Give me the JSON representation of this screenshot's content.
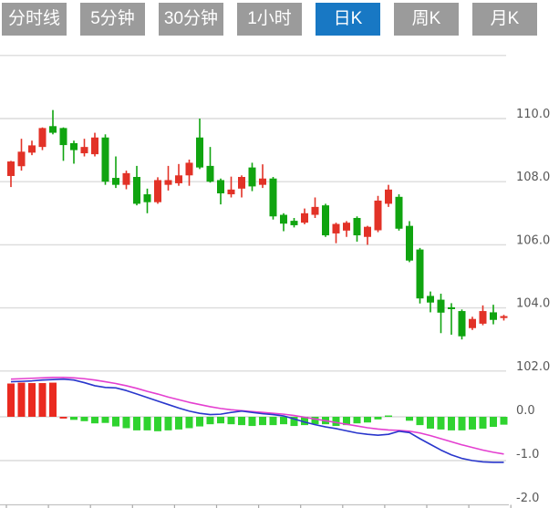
{
  "tabs": [
    {
      "label": "分时线",
      "active": false
    },
    {
      "label": "5分钟",
      "active": false
    },
    {
      "label": "30分钟",
      "active": false
    },
    {
      "label": "1小时",
      "active": false
    },
    {
      "label": "日K",
      "active": true
    },
    {
      "label": "周K",
      "active": false
    },
    {
      "label": "月K",
      "active": false
    }
  ],
  "colors": {
    "tab_inactive": "#9b9b9b",
    "tab_active": "#1878c4",
    "up_red": "#e23227",
    "down_green": "#10a410",
    "hist_red": "#ea2a20",
    "hist_green": "#2fd32f",
    "dif_blue": "#2936cc",
    "dea_pink": "#e43fd0",
    "grid": "#dcdcdc",
    "axis_line": "#c4c4c4",
    "label": "#585858"
  },
  "chart_data": {
    "type": "candlestick",
    "title": "",
    "panels": [
      "price",
      "macd"
    ],
    "legend_position": "none",
    "grid": true,
    "price_axis": {
      "tick_labels": [
        "110.0",
        "108.0",
        "106.0",
        "104.0",
        "102.0"
      ],
      "tick_values": [
        110.0,
        108.0,
        106.0,
        104.0,
        102.0
      ],
      "top_unlabeled_value": 112.0
    },
    "macd_axis": {
      "tick_labels": [
        "0.0",
        "-1.0",
        "-2.0"
      ],
      "tick_values": [
        0.0,
        -1.0,
        -2.0
      ]
    },
    "candles_ohlc_color": [
      [
        108.18,
        108.66,
        107.83,
        108.64,
        "r"
      ],
      [
        108.49,
        109.36,
        108.35,
        108.95,
        "r"
      ],
      [
        108.92,
        109.3,
        108.84,
        109.15,
        "r"
      ],
      [
        109.1,
        109.72,
        109.0,
        109.7,
        "r"
      ],
      [
        109.76,
        110.27,
        109.5,
        109.55,
        "g"
      ],
      [
        109.7,
        109.72,
        108.66,
        109.16,
        "g"
      ],
      [
        109.22,
        109.3,
        108.57,
        109.0,
        "g"
      ],
      [
        108.9,
        109.36,
        108.8,
        109.1,
        "r"
      ],
      [
        108.87,
        109.55,
        108.8,
        109.4,
        "r"
      ],
      [
        109.4,
        109.5,
        107.9,
        108.0,
        "g"
      ],
      [
        108.12,
        108.8,
        107.8,
        107.9,
        "g"
      ],
      [
        107.9,
        108.35,
        107.76,
        108.27,
        "r"
      ],
      [
        108.15,
        108.5,
        107.25,
        107.3,
        "g"
      ],
      [
        107.6,
        107.78,
        107.0,
        107.35,
        "g"
      ],
      [
        107.35,
        108.14,
        107.3,
        108.05,
        "r"
      ],
      [
        107.9,
        108.5,
        107.72,
        108.05,
        "r"
      ],
      [
        107.95,
        108.56,
        107.87,
        108.2,
        "r"
      ],
      [
        108.2,
        108.7,
        107.87,
        108.6,
        "r"
      ],
      [
        109.4,
        110.0,
        108.4,
        108.45,
        "g"
      ],
      [
        108.5,
        109.1,
        107.97,
        108.0,
        "g"
      ],
      [
        108.05,
        108.1,
        107.28,
        107.63,
        "g"
      ],
      [
        107.6,
        108.16,
        107.5,
        107.75,
        "r"
      ],
      [
        107.78,
        108.2,
        107.5,
        108.15,
        "r"
      ],
      [
        108.45,
        108.6,
        107.7,
        107.85,
        "g"
      ],
      [
        107.9,
        108.55,
        107.8,
        108.1,
        "r"
      ],
      [
        108.1,
        108.15,
        106.8,
        106.9,
        "g"
      ],
      [
        106.95,
        107.0,
        106.43,
        106.67,
        "g"
      ],
      [
        106.76,
        106.85,
        106.55,
        106.62,
        "g"
      ],
      [
        106.7,
        107.15,
        106.65,
        107.0,
        "r"
      ],
      [
        106.95,
        107.5,
        106.85,
        107.2,
        "r"
      ],
      [
        107.25,
        107.3,
        106.25,
        106.3,
        "g"
      ],
      [
        106.36,
        106.7,
        106.05,
        106.66,
        "r"
      ],
      [
        106.45,
        106.75,
        106.25,
        106.7,
        "r"
      ],
      [
        106.85,
        106.9,
        106.1,
        106.3,
        "g"
      ],
      [
        106.25,
        106.6,
        106.0,
        106.57,
        "r"
      ],
      [
        106.46,
        107.55,
        106.4,
        107.4,
        "r"
      ],
      [
        107.3,
        107.9,
        107.2,
        107.75,
        "r"
      ],
      [
        107.52,
        107.6,
        106.45,
        106.51,
        "g"
      ],
      [
        106.6,
        106.75,
        105.45,
        105.5,
        "g"
      ],
      [
        105.85,
        105.9,
        104.14,
        104.3,
        "g"
      ],
      [
        104.38,
        104.52,
        103.86,
        104.17,
        "g"
      ],
      [
        104.26,
        104.45,
        103.2,
        103.85,
        "g"
      ],
      [
        104.02,
        104.15,
        103.15,
        103.96,
        "g"
      ],
      [
        103.9,
        103.95,
        103.0,
        103.1,
        "g"
      ],
      [
        103.36,
        103.72,
        103.3,
        103.65,
        "r"
      ],
      [
        103.5,
        104.08,
        103.45,
        103.9,
        "r"
      ],
      [
        103.86,
        104.1,
        103.48,
        103.62,
        "g"
      ],
      [
        103.68,
        103.78,
        103.6,
        103.74,
        "r"
      ]
    ],
    "macd": {
      "histogram": [
        [
          0.76,
          "r"
        ],
        [
          0.78,
          "r"
        ],
        [
          0.77,
          "r"
        ],
        [
          0.77,
          "r"
        ],
        [
          0.78,
          "r"
        ],
        [
          -0.04,
          "r"
        ],
        [
          -0.07,
          "g"
        ],
        [
          -0.1,
          "g"
        ],
        [
          -0.15,
          "g"
        ],
        [
          -0.14,
          "g"
        ],
        [
          -0.22,
          "g"
        ],
        [
          -0.26,
          "g"
        ],
        [
          -0.31,
          "g"
        ],
        [
          -0.31,
          "g"
        ],
        [
          -0.33,
          "g"
        ],
        [
          -0.31,
          "g"
        ],
        [
          -0.29,
          "g"
        ],
        [
          -0.26,
          "g"
        ],
        [
          -0.22,
          "g"
        ],
        [
          -0.17,
          "g"
        ],
        [
          -0.15,
          "g"
        ],
        [
          -0.17,
          "g"
        ],
        [
          -0.19,
          "g"
        ],
        [
          -0.21,
          "g"
        ],
        [
          -0.19,
          "g"
        ],
        [
          -0.19,
          "g"
        ],
        [
          -0.17,
          "g"
        ],
        [
          -0.21,
          "g"
        ],
        [
          -0.19,
          "g"
        ],
        [
          -0.17,
          "g"
        ],
        [
          -0.17,
          "g"
        ],
        [
          -0.21,
          "g"
        ],
        [
          -0.19,
          "g"
        ],
        [
          -0.15,
          "g"
        ],
        [
          -0.13,
          "g"
        ],
        [
          -0.06,
          "g"
        ],
        [
          0.03,
          "g"
        ],
        [
          0.0,
          "g"
        ],
        [
          -0.09,
          "g"
        ],
        [
          -0.19,
          "g"
        ],
        [
          -0.27,
          "g"
        ],
        [
          -0.29,
          "g"
        ],
        [
          -0.31,
          "g"
        ],
        [
          -0.31,
          "g"
        ],
        [
          -0.29,
          "g"
        ],
        [
          -0.27,
          "g"
        ],
        [
          -0.23,
          "g"
        ],
        [
          -0.18,
          "g"
        ]
      ],
      "dif": [
        0.8,
        0.81,
        0.82,
        0.84,
        0.85,
        0.86,
        0.84,
        0.78,
        0.71,
        0.67,
        0.66,
        0.6,
        0.52,
        0.44,
        0.36,
        0.28,
        0.2,
        0.13,
        0.08,
        0.05,
        0.06,
        0.1,
        0.13,
        0.1,
        0.07,
        0.05,
        0.02,
        -0.05,
        -0.12,
        -0.18,
        -0.23,
        -0.27,
        -0.32,
        -0.37,
        -0.4,
        -0.42,
        -0.4,
        -0.33,
        -0.36,
        -0.5,
        -0.63,
        -0.76,
        -0.87,
        -0.95,
        -1.0,
        -1.03,
        -1.04,
        -1.04
      ],
      "dea": [
        0.86,
        0.87,
        0.88,
        0.89,
        0.9,
        0.9,
        0.89,
        0.87,
        0.84,
        0.8,
        0.76,
        0.71,
        0.65,
        0.58,
        0.52,
        0.45,
        0.39,
        0.33,
        0.28,
        0.23,
        0.19,
        0.16,
        0.14,
        0.12,
        0.1,
        0.08,
        0.06,
        0.03,
        -0.01,
        -0.05,
        -0.09,
        -0.13,
        -0.17,
        -0.21,
        -0.25,
        -0.28,
        -0.3,
        -0.31,
        -0.33,
        -0.37,
        -0.43,
        -0.5,
        -0.57,
        -0.64,
        -0.7,
        -0.76,
        -0.81,
        -0.85
      ]
    }
  }
}
